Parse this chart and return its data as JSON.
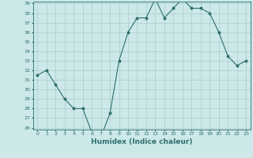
{
  "x": [
    0,
    1,
    2,
    3,
    4,
    5,
    6,
    7,
    8,
    9,
    10,
    11,
    12,
    13,
    14,
    15,
    16,
    17,
    18,
    19,
    20,
    21,
    22,
    23
  ],
  "y": [
    31.5,
    32.0,
    30.5,
    29.0,
    28.0,
    28.0,
    25.5,
    25.0,
    27.5,
    33.0,
    36.0,
    37.5,
    37.5,
    39.5,
    37.5,
    38.5,
    39.5,
    38.5,
    38.5,
    38.0,
    36.0,
    33.5,
    32.5,
    33.0
  ],
  "xlabel": "Humidex (Indice chaleur)",
  "ylim": [
    26,
    39
  ],
  "xlim": [
    -0.5,
    23.5
  ],
  "yticks": [
    26,
    27,
    28,
    29,
    30,
    31,
    32,
    33,
    34,
    35,
    36,
    37,
    38,
    39
  ],
  "xticks": [
    0,
    1,
    2,
    3,
    4,
    5,
    6,
    7,
    8,
    9,
    10,
    11,
    12,
    13,
    14,
    15,
    16,
    17,
    18,
    19,
    20,
    21,
    22,
    23
  ],
  "line_color": "#2d6e6e",
  "marker_color": "#2d6e6e",
  "bg_color": "#cce8e8",
  "grid_color": "#aacccc",
  "tick_color": "#2d6e6e",
  "label_color": "#2d6e6e",
  "tick_fontsize": 4.5,
  "label_fontsize": 6.5
}
